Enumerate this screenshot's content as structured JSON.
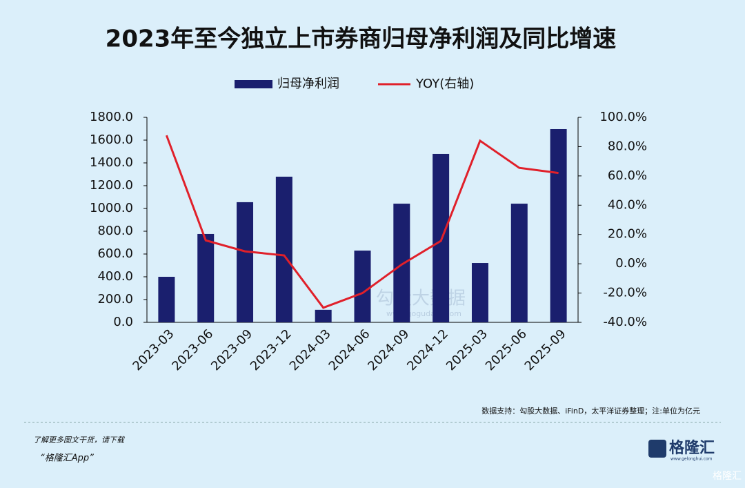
{
  "chart_data": {
    "type": "bar-line",
    "title": "2023年至今独立上市券商归母净利润及同比增速",
    "categories": [
      "2023-03",
      "2023-06",
      "2023-09",
      "2023-12",
      "2024-03",
      "2024-06",
      "2024-09",
      "2024-12",
      "2025-03",
      "2025-06",
      "2025-09"
    ],
    "series": [
      {
        "name": "归母净利润",
        "type": "bar",
        "color": "#1a1f6e",
        "values": [
          400,
          776,
          1055,
          1279,
          110,
          630,
          1042,
          1479,
          521,
          1042,
          1697
        ]
      },
      {
        "name": "YOY(右轴)",
        "type": "line",
        "axis": "y2",
        "color": "#e0202a",
        "values": [
          87.7,
          16,
          8.5,
          5.7,
          -30,
          -20,
          -0.5,
          15.6,
          84,
          65.5,
          62
        ]
      }
    ],
    "ylim": [
      0,
      1800
    ],
    "yticks": [
      {
        "value": 0,
        "label": "0.0"
      },
      {
        "value": 200,
        "label": "200.0"
      },
      {
        "value": 400,
        "label": "400.0"
      },
      {
        "value": 600,
        "label": "600.0"
      },
      {
        "value": 800,
        "label": "800.0"
      },
      {
        "value": 1000,
        "label": "1000.0"
      },
      {
        "value": 1200,
        "label": "1200.0"
      },
      {
        "value": 1400,
        "label": "1400.0"
      },
      {
        "value": 1600,
        "label": "1600.0"
      },
      {
        "value": 1800,
        "label": "1800.0"
      }
    ],
    "y2lim": [
      -40,
      100
    ],
    "y2ticks": [
      {
        "value": -40,
        "label": "-40.0%"
      },
      {
        "value": -20,
        "label": "-20.0%"
      },
      {
        "value": 0,
        "label": "0.0%"
      },
      {
        "value": 20,
        "label": "20.0%"
      },
      {
        "value": 40,
        "label": "40.0%"
      },
      {
        "value": 60,
        "label": "60.0%"
      },
      {
        "value": 80,
        "label": "80.0%"
      },
      {
        "value": 100,
        "label": "100.0%"
      }
    ],
    "source": "数据支持：勾股大数据、iFinD，太平洋证券整理；注:单位为亿元",
    "watermark": "勾股大数据",
    "watermark_url": "www.gogudata.com"
  },
  "footer": {
    "prompt": "了解更多图文干货，请下载",
    "app": "“格隆汇App”",
    "logo": "格隆汇",
    "logo_url": "www.gelonghui.com",
    "corner": "格隆汇"
  }
}
